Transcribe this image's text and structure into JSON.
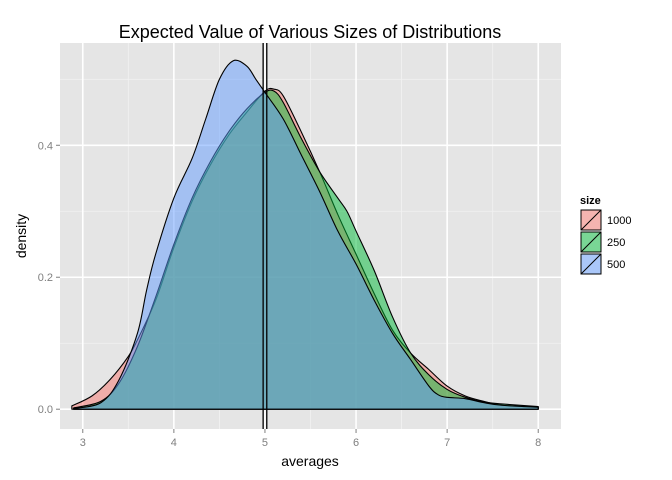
{
  "chart_data": {
    "type": "area",
    "title": "Expected Value of Various Sizes of Distributions",
    "xlabel": "averages",
    "ylabel": "density",
    "xlim": [
      2.75,
      8.25
    ],
    "ylim": [
      -0.03,
      0.555
    ],
    "x_ticks": [
      3,
      4,
      5,
      6,
      7,
      8
    ],
    "x_tick_labels": [
      "3",
      "4",
      "5",
      "6",
      "7",
      "8"
    ],
    "y_ticks": [
      0.0,
      0.2,
      0.4
    ],
    "y_tick_labels": [
      "0.0",
      "0.2",
      "0.4"
    ],
    "grid": true,
    "legend": {
      "title": "size",
      "position": "right"
    },
    "vlines": [
      4.98,
      5.02
    ],
    "series": [
      {
        "name": "1000",
        "color": "#F8766D",
        "points": [
          [
            2.88,
            0.005
          ],
          [
            3.1,
            0.02
          ],
          [
            3.3,
            0.045
          ],
          [
            3.5,
            0.08
          ],
          [
            3.6,
            0.105
          ],
          [
            3.8,
            0.165
          ],
          [
            4.0,
            0.245
          ],
          [
            4.2,
            0.315
          ],
          [
            4.4,
            0.37
          ],
          [
            4.6,
            0.415
          ],
          [
            4.8,
            0.45
          ],
          [
            5.0,
            0.482
          ],
          [
            5.1,
            0.485
          ],
          [
            5.2,
            0.475
          ],
          [
            5.4,
            0.42
          ],
          [
            5.6,
            0.36
          ],
          [
            5.8,
            0.295
          ],
          [
            6.0,
            0.235
          ],
          [
            6.2,
            0.175
          ],
          [
            6.4,
            0.12
          ],
          [
            6.6,
            0.085
          ],
          [
            6.8,
            0.06
          ],
          [
            7.0,
            0.035
          ],
          [
            7.2,
            0.02
          ],
          [
            7.4,
            0.012
          ],
          [
            7.6,
            0.006
          ],
          [
            8.0,
            0.003
          ]
        ]
      },
      {
        "name": "250",
        "color": "#00BA38",
        "points": [
          [
            2.9,
            0.002
          ],
          [
            3.2,
            0.012
          ],
          [
            3.4,
            0.04
          ],
          [
            3.6,
            0.095
          ],
          [
            3.8,
            0.17
          ],
          [
            4.0,
            0.25
          ],
          [
            4.2,
            0.32
          ],
          [
            4.4,
            0.375
          ],
          [
            4.6,
            0.42
          ],
          [
            4.8,
            0.455
          ],
          [
            5.0,
            0.48
          ],
          [
            5.1,
            0.482
          ],
          [
            5.2,
            0.465
          ],
          [
            5.4,
            0.41
          ],
          [
            5.6,
            0.36
          ],
          [
            5.8,
            0.32
          ],
          [
            5.9,
            0.3
          ],
          [
            6.0,
            0.27
          ],
          [
            6.2,
            0.21
          ],
          [
            6.4,
            0.14
          ],
          [
            6.6,
            0.085
          ],
          [
            6.8,
            0.052
          ],
          [
            7.0,
            0.03
          ],
          [
            7.2,
            0.018
          ],
          [
            7.4,
            0.011
          ],
          [
            7.6,
            0.008
          ],
          [
            8.0,
            0.004
          ]
        ]
      },
      {
        "name": "500",
        "color": "#619CFF",
        "points": [
          [
            2.9,
            0.001
          ],
          [
            3.2,
            0.01
          ],
          [
            3.4,
            0.045
          ],
          [
            3.6,
            0.115
          ],
          [
            3.7,
            0.18
          ],
          [
            3.8,
            0.235
          ],
          [
            4.0,
            0.32
          ],
          [
            4.2,
            0.38
          ],
          [
            4.35,
            0.44
          ],
          [
            4.5,
            0.5
          ],
          [
            4.65,
            0.528
          ],
          [
            4.8,
            0.52
          ],
          [
            4.9,
            0.5
          ],
          [
            5.0,
            0.48
          ],
          [
            5.2,
            0.44
          ],
          [
            5.4,
            0.385
          ],
          [
            5.6,
            0.33
          ],
          [
            5.8,
            0.27
          ],
          [
            6.0,
            0.22
          ],
          [
            6.2,
            0.165
          ],
          [
            6.4,
            0.115
          ],
          [
            6.6,
            0.075
          ],
          [
            6.8,
            0.035
          ],
          [
            6.9,
            0.022
          ],
          [
            7.0,
            0.018
          ],
          [
            7.2,
            0.016
          ],
          [
            7.4,
            0.01
          ],
          [
            7.6,
            0.006
          ],
          [
            8.0,
            0.003
          ]
        ]
      }
    ]
  }
}
